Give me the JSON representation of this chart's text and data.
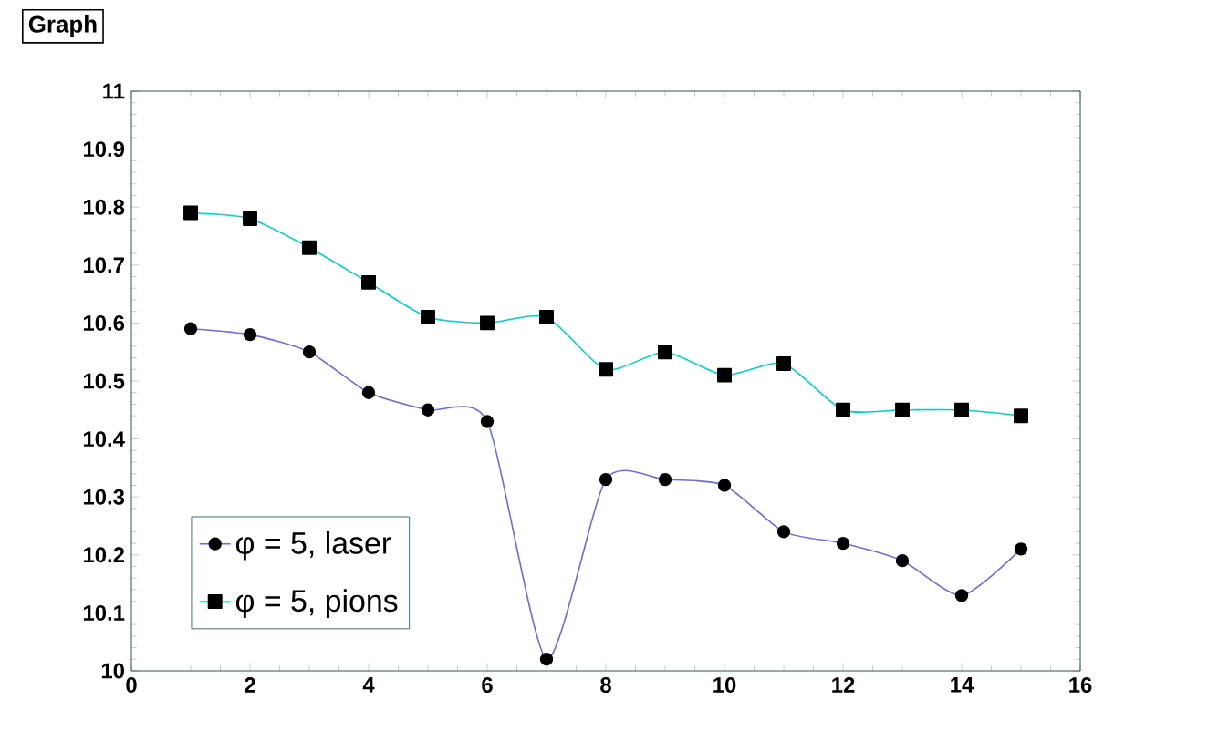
{
  "chart_data": {
    "type": "line",
    "title": "Graph",
    "x": [
      1,
      2,
      3,
      4,
      5,
      6,
      7,
      8,
      9,
      10,
      11,
      12,
      13,
      14,
      15
    ],
    "series": [
      {
        "name": "φ = 5, laser",
        "color": "#6a6af0",
        "marker": "circle",
        "values": [
          10.59,
          10.58,
          10.55,
          10.48,
          10.45,
          10.43,
          10.02,
          10.33,
          10.33,
          10.32,
          10.24,
          10.22,
          10.19,
          10.13,
          10.21
        ]
      },
      {
        "name": "φ = 5, pions",
        "color": "#00d0d0",
        "marker": "square",
        "values": [
          10.79,
          10.78,
          10.73,
          10.67,
          10.61,
          10.6,
          10.61,
          10.52,
          10.55,
          10.51,
          10.53,
          10.45,
          10.45,
          10.45,
          10.44
        ]
      }
    ],
    "xlim": [
      0,
      16
    ],
    "xticks": [
      0,
      2,
      4,
      6,
      8,
      10,
      12,
      14,
      16
    ],
    "ylim": [
      10,
      11
    ],
    "yticks": [
      10,
      10.1,
      10.2,
      10.3,
      10.4,
      10.5,
      10.6,
      10.7,
      10.8,
      10.9,
      11
    ],
    "grid": false,
    "legend": "bottom left",
    "line_style": "solid"
  }
}
